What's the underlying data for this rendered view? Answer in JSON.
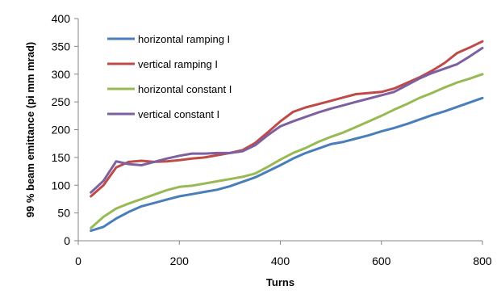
{
  "chart_data": {
    "type": "line",
    "title": "",
    "xlabel": "Turns",
    "ylabel": "99 % beam emittance (pi mm mrad)",
    "xlim": [
      0,
      800
    ],
    "ylim": [
      0,
      400
    ],
    "xticks": [
      "0",
      "200",
      "400",
      "600",
      "800"
    ],
    "yticks": [
      "0",
      "50",
      "100",
      "150",
      "200",
      "250",
      "300",
      "350",
      "400"
    ],
    "grid": false,
    "legend_position": "top-left",
    "series": [
      {
        "name": "horizontal ramping I",
        "color": "#4A7EBB",
        "x": [
          25,
          50,
          75,
          100,
          125,
          150,
          175,
          200,
          225,
          250,
          275,
          300,
          325,
          350,
          375,
          400,
          425,
          450,
          475,
          500,
          525,
          550,
          575,
          600,
          625,
          650,
          675,
          700,
          725,
          750,
          775,
          800
        ],
        "y": [
          18,
          25,
          40,
          52,
          62,
          68,
          74,
          80,
          84,
          88,
          92,
          98,
          106,
          114,
          125,
          136,
          148,
          158,
          166,
          174,
          178,
          184,
          190,
          197,
          203,
          210,
          218,
          226,
          233,
          241,
          249,
          257
        ]
      },
      {
        "name": "vertical ramping I",
        "color": "#BE4B48",
        "x": [
          25,
          50,
          75,
          100,
          125,
          150,
          175,
          200,
          225,
          250,
          275,
          300,
          325,
          350,
          375,
          400,
          425,
          450,
          475,
          500,
          525,
          550,
          575,
          600,
          625,
          650,
          675,
          700,
          725,
          750,
          775,
          800
        ],
        "y": [
          80,
          100,
          132,
          142,
          144,
          142,
          143,
          145,
          148,
          150,
          154,
          158,
          163,
          176,
          195,
          215,
          232,
          240,
          246,
          252,
          258,
          264,
          266,
          268,
          274,
          284,
          294,
          306,
          320,
          338,
          348,
          359
        ]
      },
      {
        "name": "horizontal constant I",
        "color": "#98B954",
        "x": [
          25,
          50,
          75,
          100,
          125,
          150,
          175,
          200,
          225,
          250,
          275,
          300,
          325,
          350,
          375,
          400,
          425,
          450,
          475,
          500,
          525,
          550,
          575,
          600,
          625,
          650,
          675,
          700,
          725,
          750,
          775,
          800
        ],
        "y": [
          23,
          43,
          58,
          67,
          75,
          83,
          91,
          97,
          99,
          103,
          107,
          111,
          115,
          121,
          133,
          146,
          158,
          167,
          178,
          187,
          195,
          205,
          215,
          225,
          236,
          246,
          257,
          266,
          276,
          285,
          292,
          300
        ]
      },
      {
        "name": "vertical constant I",
        "color": "#7D60A0",
        "x": [
          25,
          50,
          75,
          100,
          125,
          150,
          175,
          200,
          225,
          250,
          275,
          300,
          325,
          350,
          375,
          400,
          425,
          450,
          475,
          500,
          525,
          550,
          575,
          600,
          625,
          650,
          675,
          700,
          725,
          750,
          775,
          800
        ],
        "y": [
          87,
          108,
          143,
          138,
          136,
          142,
          148,
          153,
          157,
          157,
          158,
          158,
          161,
          172,
          190,
          206,
          215,
          223,
          231,
          238,
          244,
          250,
          256,
          262,
          268,
          280,
          292,
          302,
          310,
          318,
          332,
          347
        ]
      }
    ]
  }
}
